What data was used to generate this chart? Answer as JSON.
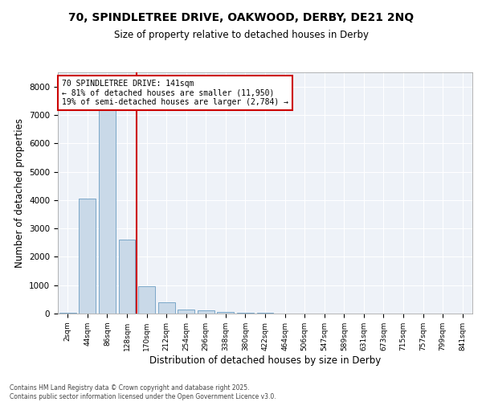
{
  "title_line1": "70, SPINDLETREE DRIVE, OAKWOOD, DERBY, DE21 2NQ",
  "title_line2": "Size of property relative to detached houses in Derby",
  "xlabel": "Distribution of detached houses by size in Derby",
  "ylabel": "Number of detached properties",
  "categories": [
    "2sqm",
    "44sqm",
    "86sqm",
    "128sqm",
    "170sqm",
    "212sqm",
    "254sqm",
    "296sqm",
    "338sqm",
    "380sqm",
    "422sqm",
    "464sqm",
    "506sqm",
    "547sqm",
    "589sqm",
    "631sqm",
    "673sqm",
    "715sqm",
    "757sqm",
    "799sqm",
    "841sqm"
  ],
  "values": [
    20,
    4050,
    7300,
    2600,
    950,
    400,
    150,
    100,
    50,
    25,
    15,
    5,
    3,
    2,
    1,
    1,
    0,
    0,
    0,
    0,
    0
  ],
  "bar_color": "#c9d9e8",
  "bar_edge_color": "#6b9dc2",
  "red_line_index": 3,
  "annotation_line1": "70 SPINDLETREE DRIVE: 141sqm",
  "annotation_line2": "← 81% of detached houses are smaller (11,950)",
  "annotation_line3": "19% of semi-detached houses are larger (2,784) →",
  "annotation_box_color": "#ffffff",
  "annotation_box_edge_color": "#cc0000",
  "ylim": [
    0,
    8500
  ],
  "yticks": [
    0,
    1000,
    2000,
    3000,
    4000,
    5000,
    6000,
    7000,
    8000
  ],
  "background_color": "#eef2f8",
  "grid_color": "#ffffff",
  "footer_line1": "Contains HM Land Registry data © Crown copyright and database right 2025.",
  "footer_line2": "Contains public sector information licensed under the Open Government Licence v3.0."
}
